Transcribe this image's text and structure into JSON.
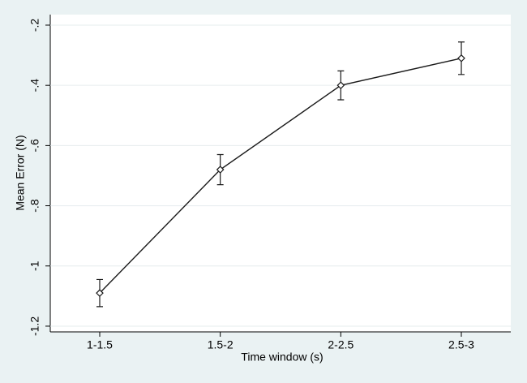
{
  "chart_data": {
    "type": "line",
    "x_label": "Time window (s)",
    "y_label": "Mean Error (N)",
    "categories": [
      "1-1.5",
      "1.5-2",
      "2-2.5",
      "2.5-3"
    ],
    "values": [
      -1.09,
      -0.68,
      -0.4,
      -0.31
    ],
    "errors": [
      0.045,
      0.05,
      0.048,
      0.054
    ],
    "color": "#1a1a1a",
    "ylim": [
      -1.219,
      -0.165
    ],
    "yticks": [
      {
        "value": -0.2,
        "label": "-.2"
      },
      {
        "value": -0.4,
        "label": "-.4"
      },
      {
        "value": -0.6,
        "label": "-.6"
      },
      {
        "value": -0.8,
        "label": "-.8"
      },
      -1,
      -1.2
    ],
    "grid": true
  }
}
